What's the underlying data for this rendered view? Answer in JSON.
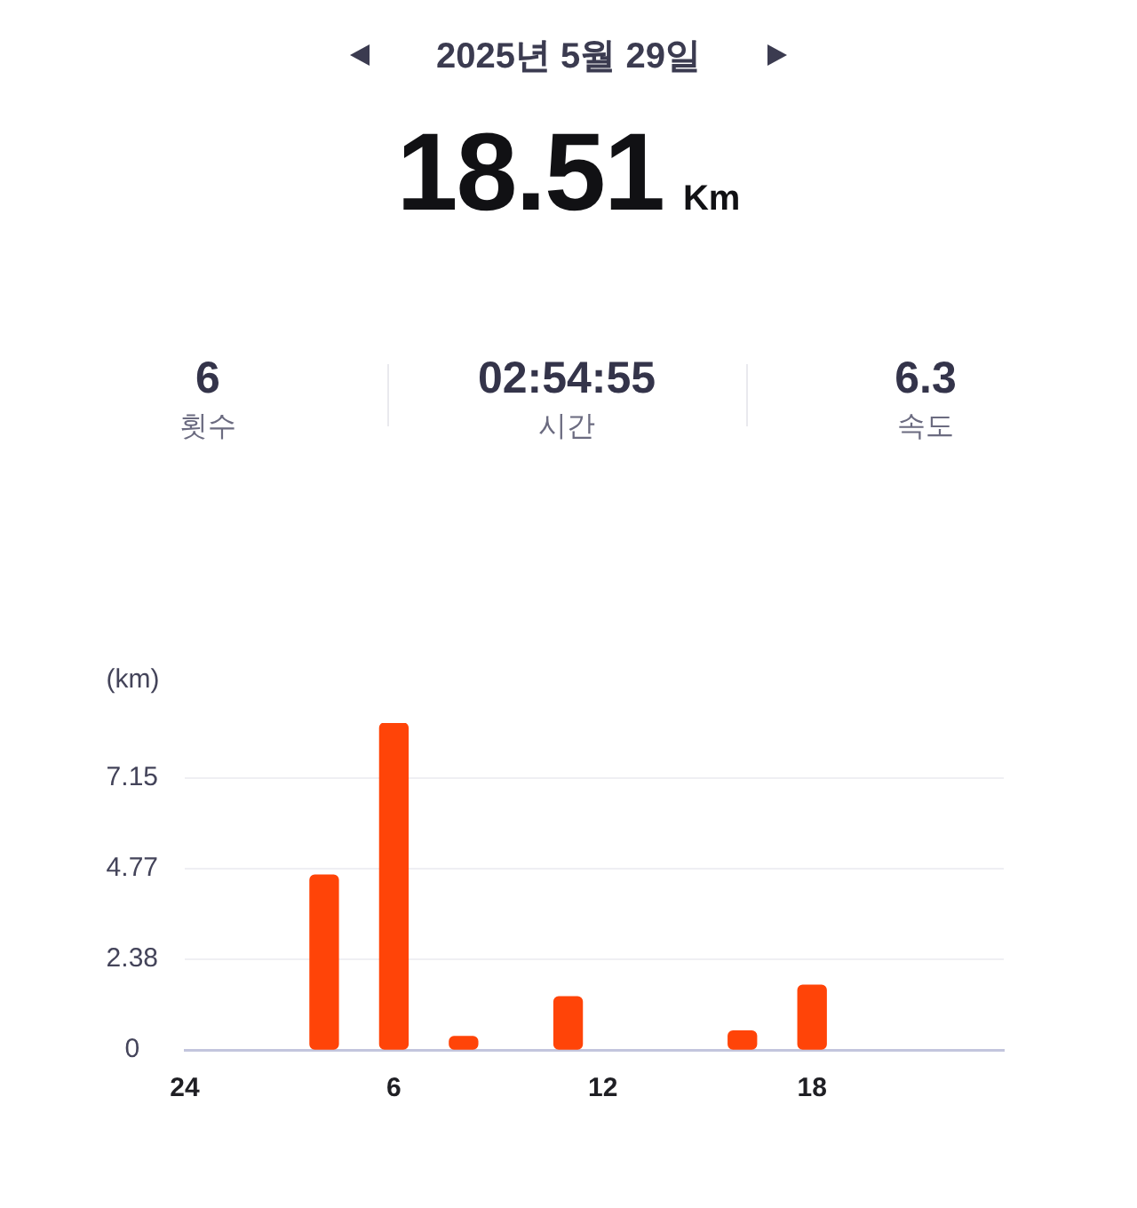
{
  "chart_data": {
    "type": "bar",
    "title": "2025년 5월 29일",
    "annotations": [
      "18.51",
      "Km",
      "6",
      "횟수",
      "02:54:55",
      "시간",
      "6.3",
      "속도"
    ],
    "ylabel": "(km)",
    "categories": [
      "24",
      null,
      null,
      null,
      null,
      null,
      "6",
      null,
      null,
      null,
      null,
      null,
      "12",
      null,
      null,
      null,
      null,
      null,
      "18",
      null,
      null,
      null,
      null,
      null
    ],
    "values": [
      null,
      null,
      null,
      null,
      4.6,
      null,
      8.6,
      null,
      0.35,
      null,
      null,
      1.4,
      null,
      null,
      null,
      null,
      0.5,
      null,
      1.7,
      null,
      null,
      null,
      null,
      null
    ],
    "color": "#ff4408",
    "ylim": [
      0,
      8.6
    ],
    "yticks": [
      0,
      2.38,
      4.77,
      7.15
    ],
    "grid": "y"
  }
}
